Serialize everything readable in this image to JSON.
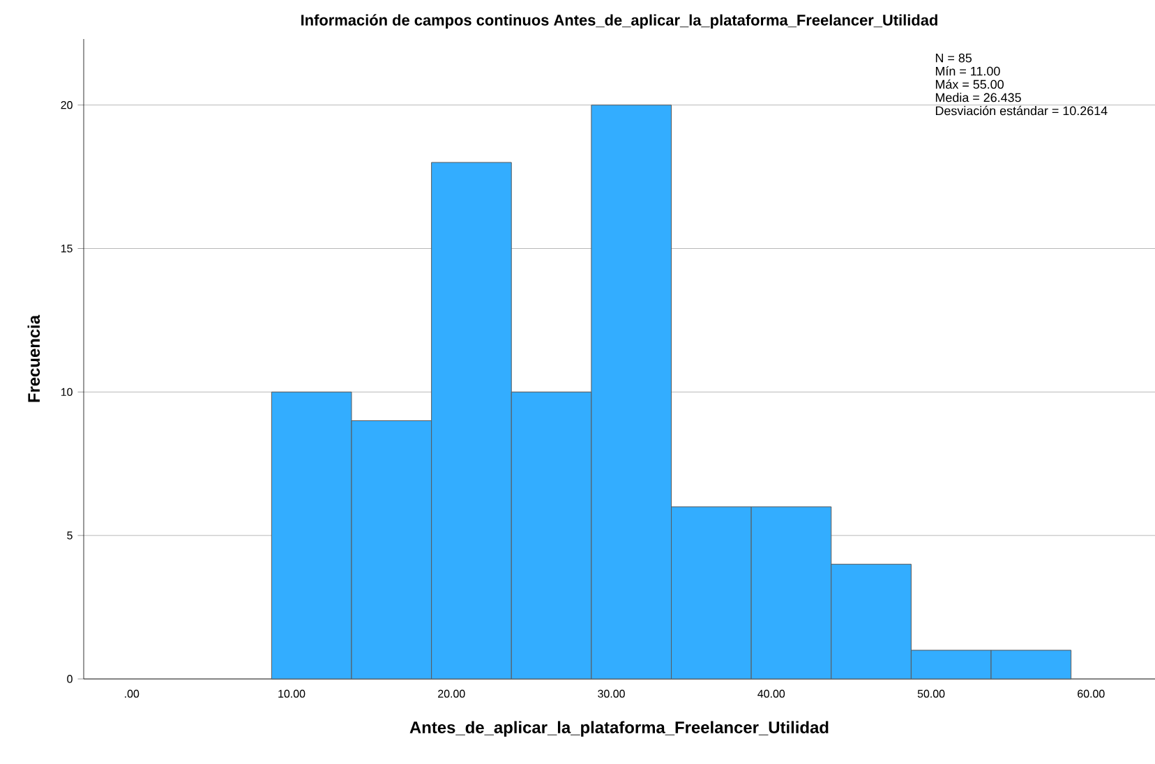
{
  "chart_data": {
    "type": "histogram",
    "title": "Información de campos continuos Antes_de_aplicar_la_plataforma_Freelancer_Utilidad",
    "xlabel": "Antes_de_aplicar_la_plataforma_Freelancer_Utilidad",
    "ylabel": "Frecuencia",
    "bins": [
      8.75,
      13.75,
      18.75,
      23.75,
      28.75,
      33.75,
      38.75,
      43.75,
      48.75,
      53.75,
      58.75
    ],
    "values": [
      10,
      9,
      18,
      10,
      20,
      6,
      6,
      4,
      1,
      1
    ],
    "color": "#33adff",
    "xlim": [
      -3,
      64
    ],
    "ylim": [
      0,
      22.3
    ],
    "xticks": [
      {
        "value": 0,
        "label": ".00"
      },
      {
        "value": 10,
        "label": "10.00"
      },
      {
        "value": 20,
        "label": "20.00"
      },
      {
        "value": 30,
        "label": "30.00"
      },
      {
        "value": 40,
        "label": "40.00"
      },
      {
        "value": 50,
        "label": "50.00"
      },
      {
        "value": 60,
        "label": "60.00"
      }
    ],
    "yticks": [
      0,
      5,
      10,
      15,
      20
    ],
    "grid": "y",
    "annotations": [
      "N = 85",
      "Mín = 11.00",
      "Máx = 55.00",
      "Media = 26.435",
      "Desviación estándar = 10.2614"
    ]
  }
}
